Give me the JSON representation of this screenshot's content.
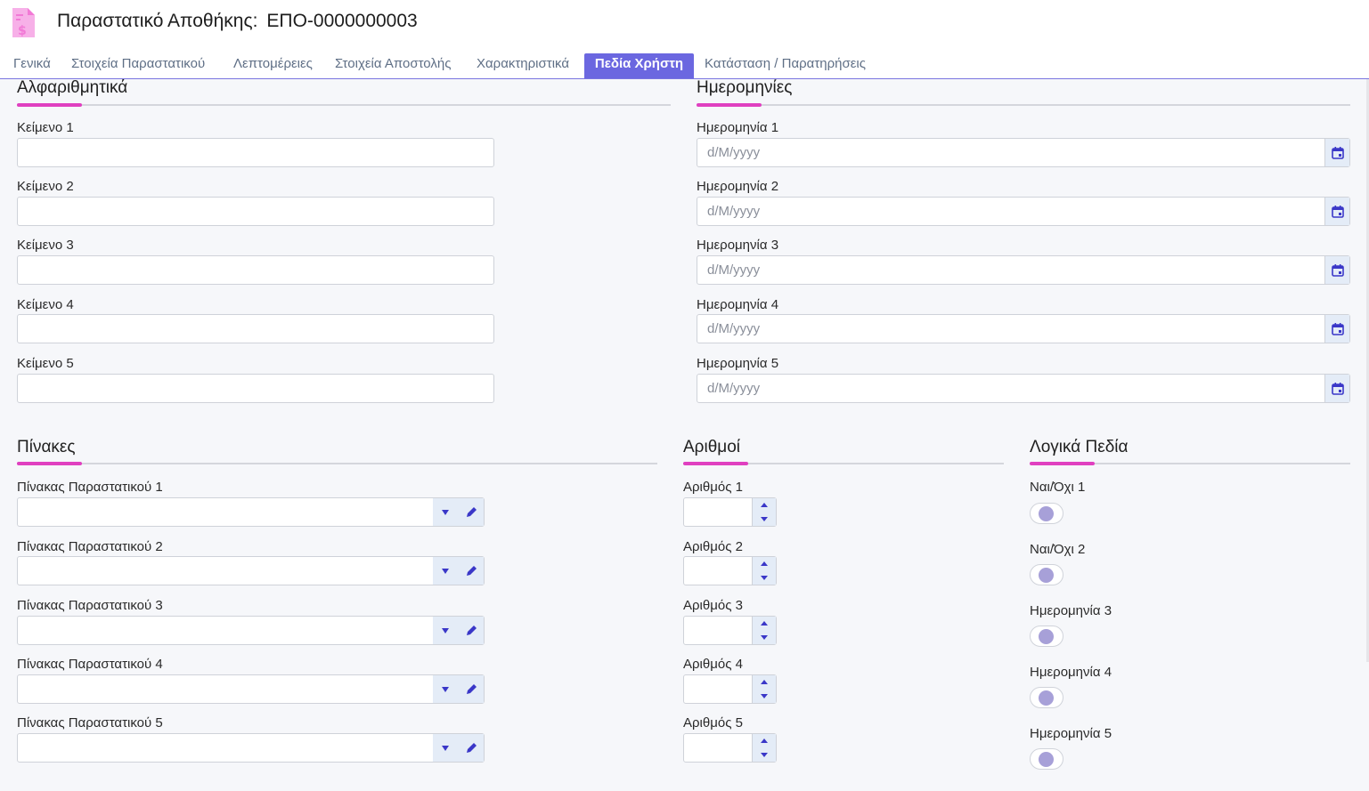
{
  "header": {
    "title": "Παραστατικό Αποθήκης:",
    "code": "ΕΠΟ-0000000003",
    "icon": "document-dollar-icon",
    "icon_color": "#f279d6"
  },
  "tabs": [
    {
      "label": "Γενικά"
    },
    {
      "label": "Στοιχεία Παραστατικού"
    },
    {
      "label": "Λεπτομέρειες"
    },
    {
      "label": "Στοιχεία Αποστολής"
    },
    {
      "label": "Χαρακτηριστικά"
    },
    {
      "label": "Πεδία Χρήστη",
      "active": true
    },
    {
      "label": "Κατάσταση / Παρατηρήσεις"
    }
  ],
  "colors": {
    "accent": "#6b67e0",
    "section_underline": "#e040c0",
    "button_bg": "#e4ecf7",
    "icon_blue": "#3a37c8"
  },
  "alphanumeric": {
    "title": "Αλφαριθμητικά",
    "fields": [
      {
        "label": "Κείμενο 1",
        "value": ""
      },
      {
        "label": "Κείμενο 2",
        "value": ""
      },
      {
        "label": "Κείμενο 3",
        "value": ""
      },
      {
        "label": "Κείμενο 4",
        "value": ""
      },
      {
        "label": "Κείμενο 5",
        "value": ""
      }
    ]
  },
  "dates": {
    "title": "Ημερομηνίες",
    "fields": [
      {
        "label": "Ημερομηνία 1",
        "placeholder": "d/M/yyyy"
      },
      {
        "label": "Ημερομηνία 2",
        "placeholder": "d/M/yyyy"
      },
      {
        "label": "Ημερομηνία 3",
        "placeholder": "d/M/yyyy"
      },
      {
        "label": "Ημερομηνία 4",
        "placeholder": "d/M/yyyy"
      },
      {
        "label": "Ημερομηνία 5",
        "placeholder": "d/M/yyyy"
      }
    ]
  },
  "tables": {
    "title": "Πίνακες",
    "fields": [
      {
        "label": "Πίνακας Παραστατικού 1",
        "value": ""
      },
      {
        "label": "Πίνακας Παραστατικού 2",
        "value": ""
      },
      {
        "label": "Πίνακας Παραστατικού 3",
        "value": ""
      },
      {
        "label": "Πίνακας Παραστατικού 4",
        "value": ""
      },
      {
        "label": "Πίνακας Παραστατικού 5",
        "value": ""
      }
    ]
  },
  "numbers": {
    "title": "Αριθμοί",
    "fields": [
      {
        "label": "Αριθμός 1",
        "value": ""
      },
      {
        "label": "Αριθμός 2",
        "value": ""
      },
      {
        "label": "Αριθμός 3",
        "value": ""
      },
      {
        "label": "Αριθμός 4",
        "value": ""
      },
      {
        "label": "Αριθμός 5",
        "value": ""
      }
    ]
  },
  "booleans": {
    "title": "Λογικά Πεδία",
    "fields": [
      {
        "label": "Ναι/Όχι 1",
        "checked": false
      },
      {
        "label": "Ναι/Όχι 2",
        "checked": false
      },
      {
        "label": "Ημερομηνία 3",
        "checked": false
      },
      {
        "label": "Ημερομηνία 4",
        "checked": false
      },
      {
        "label": "Ημερομηνία 5",
        "checked": false
      }
    ]
  }
}
